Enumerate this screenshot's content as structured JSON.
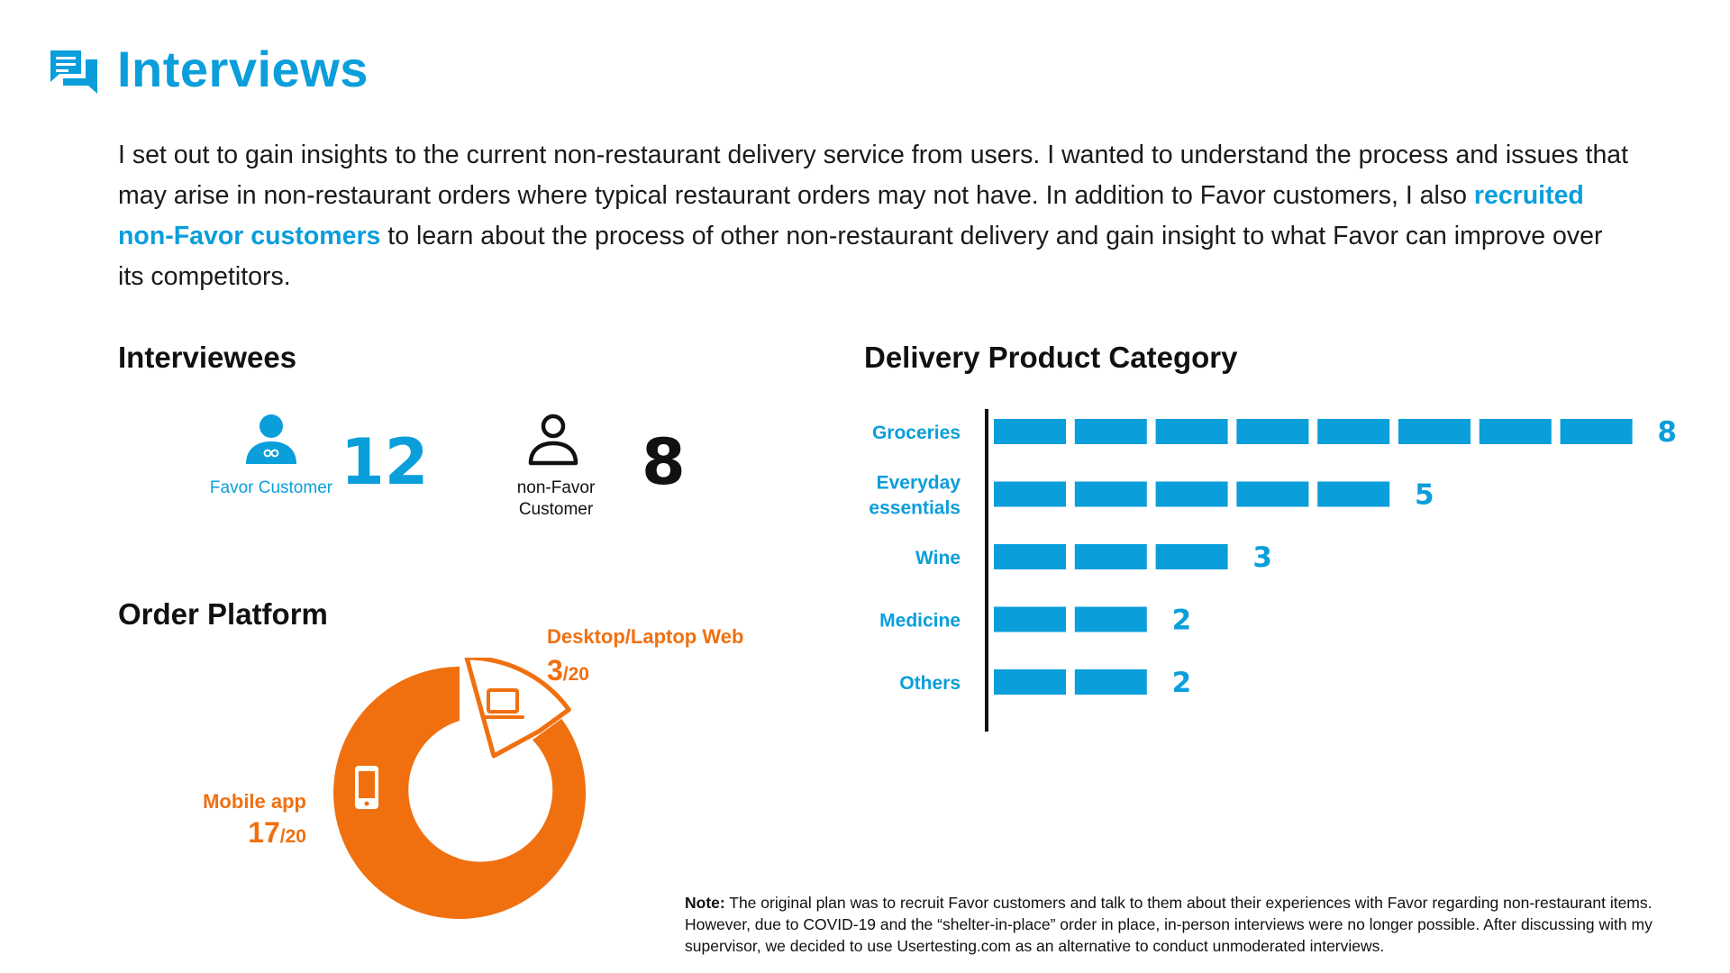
{
  "header": {
    "icon": "chat-bubbles-icon",
    "title": "Interviews"
  },
  "intro": {
    "text_before": "I set out to gain insights to the current non-restaurant delivery service from users. I wanted to understand the process and issues that may arise in non-restaurant orders where typical restaurant orders may not have. In addition to Favor customers, I also ",
    "highlight": "recruited non-Favor customers",
    "text_after": " to learn about the process of other non-restaurant delivery and gain insight to what Favor can improve over its competitors."
  },
  "interviewees": {
    "title": "Interviewees",
    "favor": {
      "icon": "favor-customer-icon",
      "label": "Favor Customer",
      "count": "12"
    },
    "non_favor": {
      "icon": "person-outline-icon",
      "label": "non-Favor Customer",
      "count": "8"
    }
  },
  "order_platform": {
    "title": "Order Platform",
    "segments": [
      {
        "name": "Desktop/Laptop Web",
        "icon": "laptop-icon",
        "value": "3",
        "total": "/20"
      },
      {
        "name": "Mobile app",
        "icon": "mobile-phone-icon",
        "value": "17",
        "total": "/20"
      }
    ]
  },
  "colors": {
    "blue": "#0a9edb",
    "orange": "#f07010",
    "text": "#1a1a1a"
  },
  "chart_data": [
    {
      "type": "bar",
      "orientation": "horizontal",
      "title": "Delivery Product Category",
      "categories": [
        "Groceries",
        "Everyday essentials",
        "Wine",
        "Medicine",
        "Others"
      ],
      "values": [
        8,
        5,
        3,
        2,
        2
      ],
      "xlim": [
        0,
        8
      ],
      "grid": false
    },
    {
      "type": "pie",
      "style": "donut",
      "categories": [
        "Desktop/Laptop Web",
        "Mobile app"
      ],
      "values": [
        3,
        17
      ]
    }
  ],
  "note": {
    "label": "Note:",
    "text": " The original plan was to recruit Favor customers and talk to them about their experiences with Favor regarding non-restaurant items. However, due to COVID-19 and the “shelter-in-place” order in place, in-person interviews were no longer possible. After discussing with my supervisor, we decided to use Usertesting.com as an alternative to conduct unmoderated interviews."
  }
}
